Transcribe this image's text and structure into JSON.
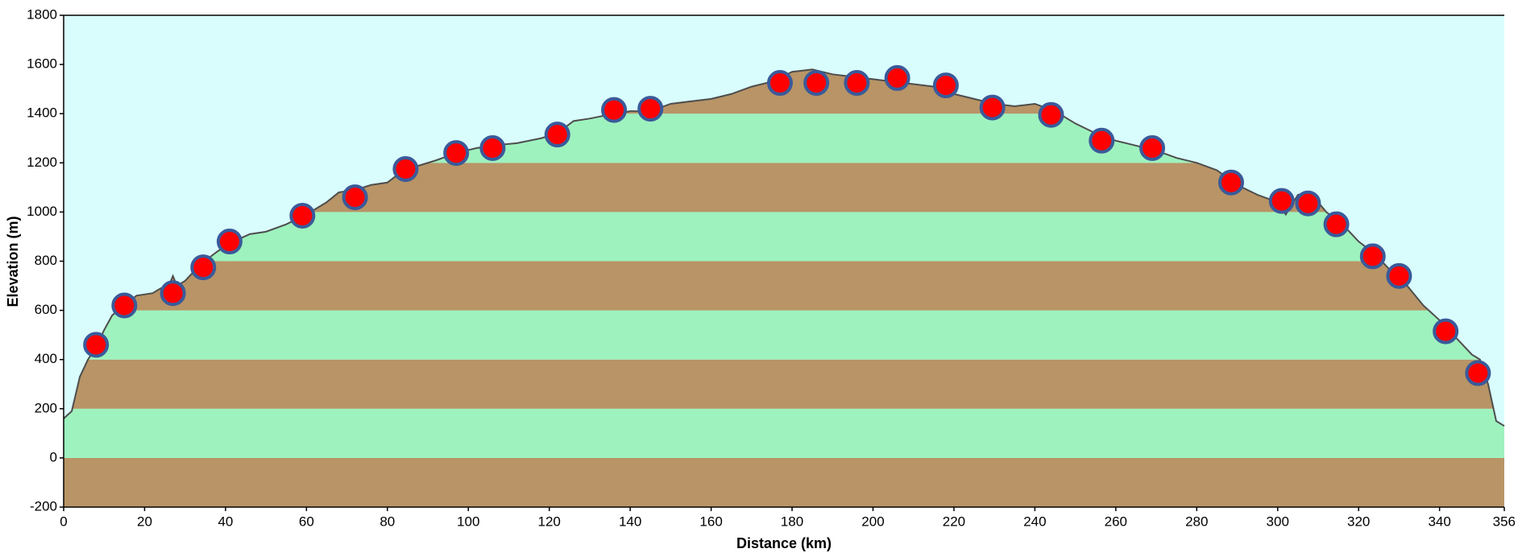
{
  "chart_data": {
    "type": "elevation-profile",
    "x_label": "Distance  (km)",
    "y_label": "Elevation (m)",
    "xlim": [
      0,
      356
    ],
    "xticks": [
      0,
      20,
      40,
      60,
      80,
      100,
      120,
      140,
      160,
      180,
      200,
      220,
      240,
      260,
      280,
      300,
      320,
      340,
      356
    ],
    "ylim": [
      -200,
      1800
    ],
    "yticks": [
      -200,
      0,
      200,
      400,
      600,
      800,
      1000,
      1200,
      1400,
      1600,
      1800
    ],
    "background": "#d9fdfd",
    "band_colors": [
      "#b89466",
      "#9ef2be"
    ],
    "line_color": "#4d4d4d",
    "profile": {
      "x": [
        0,
        2,
        4,
        6,
        8,
        10,
        12,
        15,
        18,
        22,
        24,
        26,
        27,
        28,
        30,
        34,
        38,
        42,
        46,
        50,
        55,
        60,
        65,
        68,
        72,
        76,
        80,
        84,
        88,
        92,
        97,
        102,
        106,
        112,
        118,
        122,
        126,
        130,
        136,
        140,
        145,
        150,
        155,
        160,
        165,
        170,
        175,
        180,
        185,
        190,
        195,
        200,
        205,
        210,
        215,
        220,
        225,
        230,
        235,
        240,
        245,
        250,
        255,
        260,
        265,
        270,
        275,
        280,
        285,
        290,
        295,
        300,
        302,
        305,
        308,
        312,
        316,
        320,
        324,
        328,
        332,
        336,
        340,
        344,
        348,
        350,
        352,
        354,
        356
      ],
      "values": [
        160,
        190,
        330,
        400,
        450,
        520,
        580,
        620,
        660,
        670,
        690,
        700,
        740,
        700,
        720,
        790,
        840,
        880,
        910,
        920,
        950,
        990,
        1040,
        1080,
        1090,
        1110,
        1120,
        1170,
        1190,
        1210,
        1240,
        1260,
        1270,
        1280,
        1300,
        1320,
        1370,
        1380,
        1400,
        1410,
        1410,
        1440,
        1450,
        1460,
        1480,
        1510,
        1530,
        1570,
        1580,
        1560,
        1550,
        1540,
        1530,
        1520,
        1510,
        1480,
        1460,
        1440,
        1430,
        1440,
        1410,
        1360,
        1320,
        1290,
        1270,
        1250,
        1220,
        1200,
        1170,
        1110,
        1070,
        1040,
        990,
        1070,
        1080,
        1000,
        950,
        880,
        830,
        760,
        700,
        620,
        560,
        490,
        420,
        400,
        300,
        150,
        130
      ]
    },
    "markers": {
      "color": "#ff0000",
      "edge_color": "#3a5a9a",
      "x": [
        8,
        15,
        27,
        34.5,
        41,
        59,
        72,
        84.5,
        97,
        106,
        122,
        136,
        145,
        177,
        186,
        196,
        206,
        218,
        229.5,
        244,
        256.5,
        269,
        288.5,
        301,
        307.5,
        314.5,
        323.5,
        330,
        341.5,
        349.5
      ],
      "values": [
        460,
        620,
        670,
        775,
        880,
        985,
        1060,
        1175,
        1240,
        1260,
        1315,
        1415,
        1420,
        1525,
        1525,
        1525,
        1545,
        1515,
        1425,
        1395,
        1290,
        1260,
        1120,
        1045,
        1035,
        950,
        820,
        740,
        515,
        345
      ]
    }
  }
}
